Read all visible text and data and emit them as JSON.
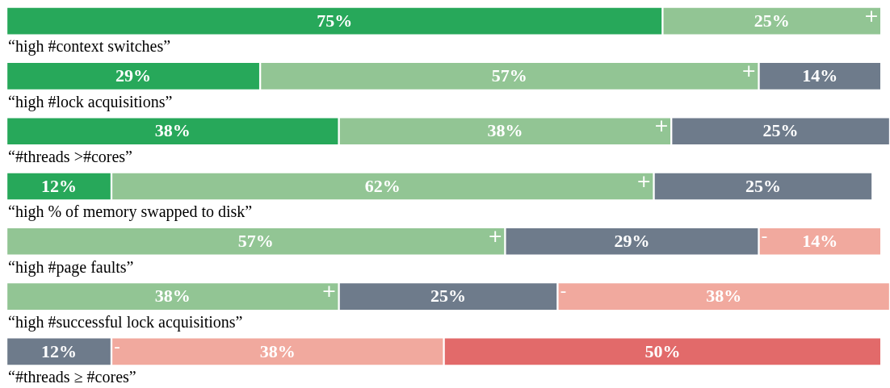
{
  "chart_data": {
    "type": "bar",
    "orientation": "horizontal",
    "stacked": true,
    "legend": false,
    "tick_labels": false,
    "categories": [
      "“high #context switches”",
      "“high #lock acquisitions”",
      "“#threads >#cores”",
      "“high % of memory swapped to disk”",
      "“high #page faults”",
      "“high #successful lock acquisitions”",
      "“#threads ≥ #cores”"
    ],
    "series": [
      {
        "color": "#27a85a",
        "values": [
          75,
          29,
          38,
          12,
          null,
          null,
          null
        ],
        "value_labels": [
          "75%",
          "29%",
          "38%",
          "12%",
          null,
          null,
          null
        ]
      },
      {
        "color": "#92c594",
        "values": [
          25,
          57,
          38,
          62,
          57,
          38,
          null
        ],
        "value_labels": [
          "25%",
          "57%",
          "38%",
          "62%",
          "57%",
          "38%",
          null
        ]
      },
      {
        "color": "#6e7b8b",
        "values": [
          null,
          14,
          25,
          25,
          29,
          25,
          12
        ],
        "value_labels": [
          null,
          "14%",
          "25%",
          "25%",
          "29%",
          "25%",
          "12%"
        ]
      },
      {
        "color": "#f1a99e",
        "values": [
          null,
          null,
          null,
          null,
          14,
          38,
          38
        ],
        "value_labels": [
          null,
          null,
          null,
          null,
          "14%",
          "38%",
          "38%"
        ]
      },
      {
        "color": "#e26a6a",
        "values": [
          null,
          null,
          null,
          null,
          null,
          null,
          50
        ],
        "value_labels": [
          null,
          null,
          null,
          null,
          null,
          null,
          "50%"
        ]
      }
    ],
    "annotations": [
      "+",
      "+",
      "+",
      "+",
      "+",
      "+",
      "-",
      "-",
      "-"
    ]
  }
}
